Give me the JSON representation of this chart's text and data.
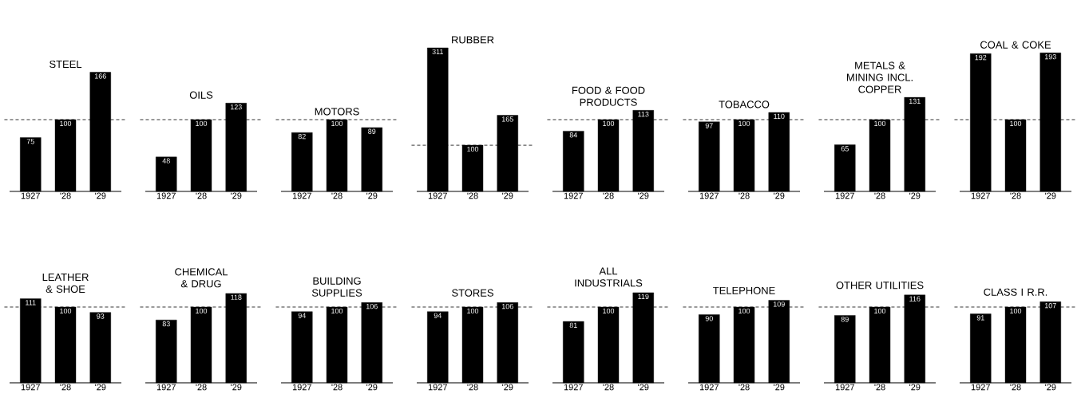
{
  "chart_data": [
    {
      "type": "bar",
      "title": "STEEL",
      "categories": [
        "1927",
        "'28",
        "'29"
      ],
      "values": [
        75,
        100,
        166
      ],
      "color": "#000000",
      "data_labels": true,
      "ref_lines": [
        {
          "axis": "y",
          "value": 100,
          "line_style": "dashed"
        }
      ]
    },
    {
      "type": "bar",
      "title": "OILS",
      "categories": [
        "1927",
        "'28",
        "'29"
      ],
      "values": [
        48,
        100,
        123
      ],
      "color": "#000000",
      "data_labels": true,
      "ref_lines": [
        {
          "axis": "y",
          "value": 100,
          "line_style": "dashed"
        }
      ]
    },
    {
      "type": "bar",
      "title": "MOTORS",
      "categories": [
        "1927",
        "'28",
        "'29"
      ],
      "values": [
        82,
        100,
        89
      ],
      "color": "#000000",
      "data_labels": true,
      "ref_lines": [
        {
          "axis": "y",
          "value": 100,
          "line_style": "dashed"
        }
      ]
    },
    {
      "type": "bar",
      "title": "RUBBER",
      "categories": [
        "1927",
        "'28",
        "'29"
      ],
      "values": [
        311,
        100,
        165
      ],
      "color": "#000000",
      "data_labels": true,
      "ref_lines": [
        {
          "axis": "y",
          "value": 100,
          "line_style": "dashed"
        }
      ]
    },
    {
      "type": "bar",
      "title": "FOOD & FOOD PRODUCTS",
      "categories": [
        "1927",
        "'28",
        "'29"
      ],
      "values": [
        84,
        100,
        113
      ],
      "color": "#000000",
      "data_labels": true,
      "ref_lines": [
        {
          "axis": "y",
          "value": 100,
          "line_style": "dashed"
        }
      ]
    },
    {
      "type": "bar",
      "title": "TOBACCO",
      "categories": [
        "1927",
        "'28",
        "'29"
      ],
      "values": [
        97,
        100,
        110
      ],
      "color": "#000000",
      "data_labels": true,
      "ref_lines": [
        {
          "axis": "y",
          "value": 100,
          "line_style": "dashed"
        }
      ]
    },
    {
      "type": "bar",
      "title": "METALS & MINING INCL. COPPER",
      "categories": [
        "1927",
        "'28",
        "'29"
      ],
      "values": [
        65,
        100,
        131
      ],
      "color": "#000000",
      "data_labels": true,
      "ref_lines": [
        {
          "axis": "y",
          "value": 100,
          "line_style": "dashed"
        }
      ]
    },
    {
      "type": "bar",
      "title": "COAL & COKE",
      "categories": [
        "1927",
        "'28",
        "'29"
      ],
      "values": [
        192,
        100,
        193
      ],
      "color": "#000000",
      "data_labels": true,
      "ref_lines": [
        {
          "axis": "y",
          "value": 100,
          "line_style": "dashed"
        }
      ]
    },
    {
      "type": "bar",
      "title": "LEATHER & SHOE",
      "categories": [
        "1927",
        "'28",
        "'29"
      ],
      "values": [
        111,
        100,
        93
      ],
      "color": "#000000",
      "data_labels": true,
      "ref_lines": [
        {
          "axis": "y",
          "value": 100,
          "line_style": "dashed"
        }
      ]
    },
    {
      "type": "bar",
      "title": "CHEMICAL & DRUG",
      "categories": [
        "1927",
        "'28",
        "'29"
      ],
      "values": [
        83,
        100,
        118
      ],
      "color": "#000000",
      "data_labels": true,
      "ref_lines": [
        {
          "axis": "y",
          "value": 100,
          "line_style": "dashed"
        }
      ]
    },
    {
      "type": "bar",
      "title": "BUILDING SUPPLIES",
      "categories": [
        "1927",
        "'28",
        "'29"
      ],
      "values": [
        94,
        100,
        106
      ],
      "color": "#000000",
      "data_labels": true,
      "ref_lines": [
        {
          "axis": "y",
          "value": 100,
          "line_style": "dashed"
        }
      ]
    },
    {
      "type": "bar",
      "title": "STORES",
      "categories": [
        "1927",
        "'28",
        "'29"
      ],
      "values": [
        94,
        100,
        106
      ],
      "color": "#000000",
      "data_labels": true,
      "ref_lines": [
        {
          "axis": "y",
          "value": 100,
          "line_style": "dashed"
        }
      ]
    },
    {
      "type": "bar",
      "title": "ALL INDUSTRIALS",
      "categories": [
        "1927",
        "'28",
        "'29"
      ],
      "values": [
        81,
        100,
        119
      ],
      "color": "#000000",
      "data_labels": true,
      "ref_lines": [
        {
          "axis": "y",
          "value": 100,
          "line_style": "dashed"
        }
      ]
    },
    {
      "type": "bar",
      "title": "TELEPHONE",
      "categories": [
        "1927",
        "'28",
        "'29"
      ],
      "values": [
        90,
        100,
        109
      ],
      "color": "#000000",
      "data_labels": true,
      "ref_lines": [
        {
          "axis": "y",
          "value": 100,
          "line_style": "dashed"
        }
      ]
    },
    {
      "type": "bar",
      "title": "OTHER UTILITIES",
      "categories": [
        "1927",
        "'28",
        "'29"
      ],
      "values": [
        89,
        100,
        116
      ],
      "color": "#000000",
      "data_labels": true,
      "ref_lines": [
        {
          "axis": "y",
          "value": 100,
          "line_style": "dashed"
        }
      ]
    },
    {
      "type": "bar",
      "title": "CLASS I R.R.",
      "categories": [
        "1927",
        "'28",
        "'29"
      ],
      "values": [
        91,
        100,
        107
      ],
      "color": "#000000",
      "data_labels": true,
      "ref_lines": [
        {
          "axis": "y",
          "value": 100,
          "line_style": "dashed"
        }
      ]
    }
  ]
}
